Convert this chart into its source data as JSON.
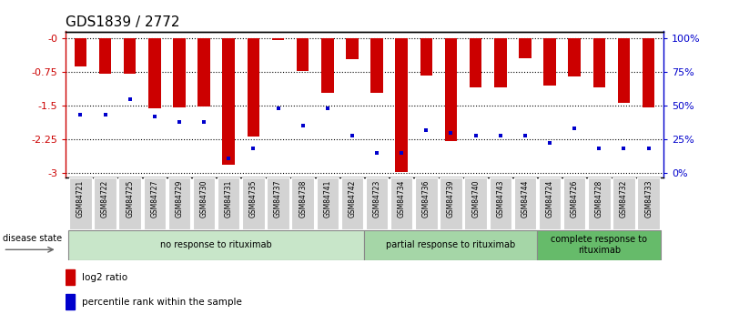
{
  "title": "GDS1839 / 2772",
  "samples": [
    "GSM84721",
    "GSM84722",
    "GSM84725",
    "GSM84727",
    "GSM84729",
    "GSM84730",
    "GSM84731",
    "GSM84735",
    "GSM84737",
    "GSM84738",
    "GSM84741",
    "GSM84742",
    "GSM84723",
    "GSM84734",
    "GSM84736",
    "GSM84739",
    "GSM84740",
    "GSM84743",
    "GSM84744",
    "GSM84724",
    "GSM84726",
    "GSM84728",
    "GSM84732",
    "GSM84733"
  ],
  "log2_ratio": [
    -0.62,
    -0.8,
    -0.8,
    -1.57,
    -1.55,
    -1.53,
    -2.82,
    -2.2,
    -0.04,
    -0.74,
    -1.22,
    -0.47,
    -1.22,
    -2.98,
    -0.83,
    -2.3,
    -1.1,
    -1.1,
    -0.45,
    -1.05,
    -0.85,
    -1.1,
    -1.45,
    -1.55
  ],
  "percentile_rank": [
    43,
    43,
    55,
    42,
    38,
    38,
    11,
    18,
    48,
    35,
    48,
    28,
    15,
    15,
    32,
    30,
    28,
    28,
    28,
    22,
    33,
    18,
    18,
    18
  ],
  "groups": [
    {
      "label": "no response to rituximab",
      "start": 0,
      "end": 11,
      "color": "#c8e6c9"
    },
    {
      "label": "partial response to rituximab",
      "start": 12,
      "end": 18,
      "color": "#a5d6a7"
    },
    {
      "label": "complete response to\nrituximab",
      "start": 19,
      "end": 23,
      "color": "#66bb6a"
    }
  ],
  "bar_color": "#cc0000",
  "dot_color": "#0000cc",
  "ylim_left": [
    -3.1,
    0.15
  ],
  "yticks_left": [
    0,
    -0.75,
    -1.5,
    -2.25,
    -3
  ],
  "yticks_right_vals": [
    100,
    75,
    50,
    25,
    0
  ],
  "yticks_right_pos": [
    0,
    -0.75,
    -1.5,
    -2.25,
    -3
  ],
  "ylabel_left_color": "#cc0000",
  "ylabel_right_color": "#0000cc",
  "legend_items": [
    "log2 ratio",
    "percentile rank within the sample"
  ],
  "disease_state_label": "disease state",
  "background_color": "#ffffff",
  "xtick_bg": "#d3d3d3",
  "title_fontsize": 11,
  "bar_width": 0.5
}
